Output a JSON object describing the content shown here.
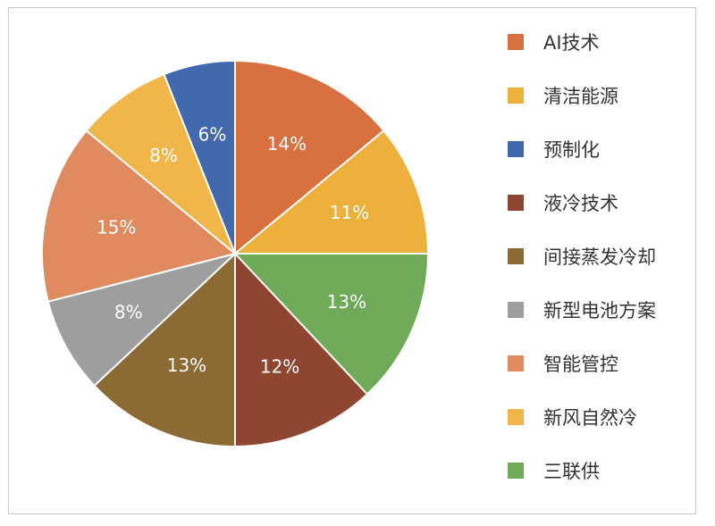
{
  "chart_data": {
    "type": "pie",
    "unit": "%",
    "slices_clockwise_from_top": [
      {
        "label": "AI技术",
        "value": 14,
        "color": "#D9703F"
      },
      {
        "label": "清洁能源",
        "value": 11,
        "color": "#EDB03B"
      },
      {
        "label": "三联供",
        "value": 13,
        "color": "#6FAA58"
      },
      {
        "label": "液冷技术",
        "value": 12,
        "color": "#8F4630"
      },
      {
        "label": "间接蒸发冷却",
        "value": 13,
        "color": "#8B6A33"
      },
      {
        "label": "新型电池方案",
        "value": 8,
        "color": "#9E9E9E"
      },
      {
        "label": "智能管控",
        "value": 15,
        "color": "#E08A5F"
      },
      {
        "label": "新风自然冷",
        "value": 8,
        "color": "#F0B64A"
      },
      {
        "label": "预制化",
        "value": 6,
        "color": "#4268AE"
      }
    ],
    "legend": {
      "placement": "right",
      "entries": [
        {
          "label": "AI技术",
          "color": "#D9703F"
        },
        {
          "label": "清洁能源",
          "color": "#EDB03B"
        },
        {
          "label": "预制化",
          "color": "#4268AE"
        },
        {
          "label": "液冷技术",
          "color": "#8F4630"
        },
        {
          "label": "间接蒸发冷却",
          "color": "#8B6A33"
        },
        {
          "label": "新型电池方案",
          "color": "#9E9E9E"
        },
        {
          "label": "智能管控",
          "color": "#E08A5F"
        },
        {
          "label": "新风自然冷",
          "color": "#F0B64A"
        },
        {
          "label": "三联供",
          "color": "#6FAA58"
        }
      ]
    }
  }
}
